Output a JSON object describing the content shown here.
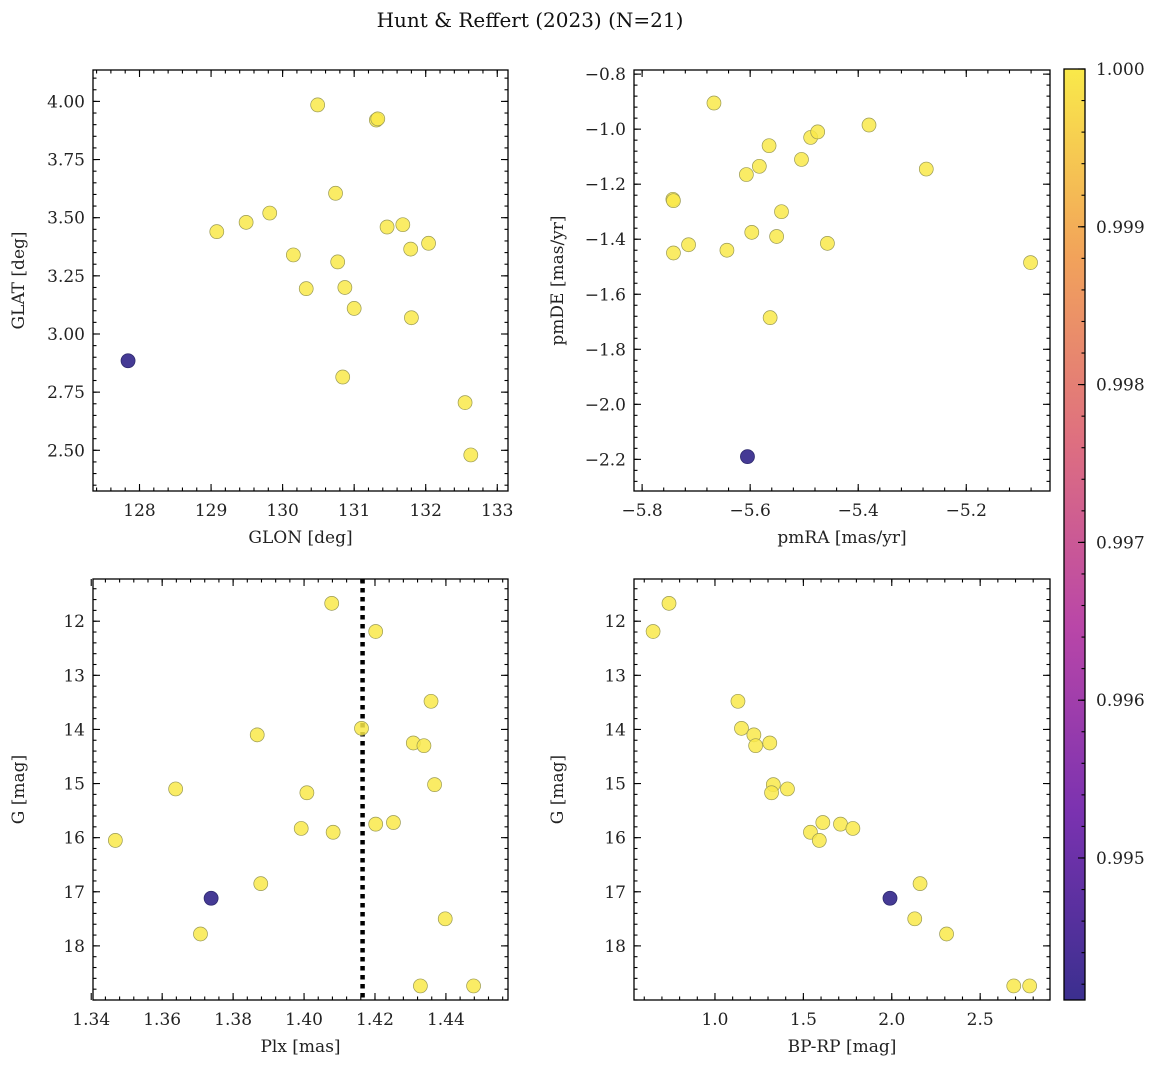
{
  "figure": {
    "title": "Hunt & Reffert (2023) (N=21)"
  },
  "colorbar": {
    "ticks": [
      "1.000",
      "0.999",
      "0.998",
      "0.997",
      "0.996",
      "0.995"
    ],
    "min": 0.9941,
    "max": 1.0,
    "colors": [
      "#3b2f8f",
      "#7a32b0",
      "#b946a8",
      "#de6f80",
      "#f2a35a",
      "#f9e94a"
    ]
  },
  "chart_data": [
    {
      "type": "scatter",
      "name": "galactic-coords",
      "xlabel": "GLON [deg]",
      "ylabel": "GLAT [deg]",
      "xlim": [
        127.35,
        133.15
      ],
      "ylim": [
        2.325,
        4.135
      ],
      "xticks": [
        128,
        129,
        130,
        131,
        132,
        133
      ],
      "yticks": [
        2.5,
        2.75,
        3.0,
        3.25,
        3.5,
        3.75,
        4.0
      ],
      "ytick_labels": [
        "2.50",
        "2.75",
        "3.00",
        "3.25",
        "3.50",
        "3.75",
        "4.00"
      ],
      "invert_y": false,
      "points": [
        {
          "x": 127.84,
          "y": 2.885,
          "prob": 0.9941
        },
        {
          "x": 129.08,
          "y": 3.44,
          "prob": 1.0
        },
        {
          "x": 129.49,
          "y": 3.48,
          "prob": 1.0
        },
        {
          "x": 129.82,
          "y": 3.52,
          "prob": 1.0
        },
        {
          "x": 130.15,
          "y": 3.34,
          "prob": 1.0
        },
        {
          "x": 130.33,
          "y": 3.195,
          "prob": 1.0
        },
        {
          "x": 130.49,
          "y": 3.985,
          "prob": 1.0
        },
        {
          "x": 130.74,
          "y": 3.605,
          "prob": 1.0
        },
        {
          "x": 130.77,
          "y": 3.31,
          "prob": 1.0
        },
        {
          "x": 130.84,
          "y": 2.815,
          "prob": 1.0
        },
        {
          "x": 130.87,
          "y": 3.2,
          "prob": 1.0
        },
        {
          "x": 131.0,
          "y": 3.11,
          "prob": 1.0
        },
        {
          "x": 131.31,
          "y": 3.92,
          "prob": 1.0
        },
        {
          "x": 131.33,
          "y": 3.925,
          "prob": 1.0
        },
        {
          "x": 131.46,
          "y": 3.46,
          "prob": 1.0
        },
        {
          "x": 131.68,
          "y": 3.47,
          "prob": 1.0
        },
        {
          "x": 131.79,
          "y": 3.365,
          "prob": 1.0
        },
        {
          "x": 131.8,
          "y": 3.07,
          "prob": 1.0
        },
        {
          "x": 132.04,
          "y": 3.39,
          "prob": 1.0
        },
        {
          "x": 132.55,
          "y": 2.705,
          "prob": 1.0
        },
        {
          "x": 132.63,
          "y": 2.48,
          "prob": 1.0
        }
      ]
    },
    {
      "type": "scatter",
      "name": "proper-motion",
      "xlabel": "pmRA [mas/yr]",
      "ylabel": "pmDE [mas/yr]",
      "xlim": [
        -5.815,
        -5.045
      ],
      "ylim": [
        -2.315,
        -0.785
      ],
      "xticks": [
        -5.8,
        -5.6,
        -5.4,
        -5.2
      ],
      "xtick_labels": [
        "−5.8",
        "−5.6",
        "−5.4",
        "−5.2"
      ],
      "yticks": [
        -2.2,
        -2.0,
        -1.8,
        -1.6,
        -1.4,
        -1.2,
        -1.0,
        -0.8
      ],
      "ytick_labels": [
        "−2.2",
        "−2.0",
        "−1.8",
        "−1.6",
        "−1.4",
        "−1.2",
        "−1.0",
        "−0.8"
      ],
      "invert_y": false,
      "points": [
        {
          "x": -5.605,
          "y": -2.19,
          "prob": 0.9941
        },
        {
          "x": -5.667,
          "y": -0.905,
          "prob": 1.0
        },
        {
          "x": -5.743,
          "y": -1.255,
          "prob": 1.0
        },
        {
          "x": -5.742,
          "y": -1.26,
          "prob": 1.0
        },
        {
          "x": -5.742,
          "y": -1.45,
          "prob": 1.0
        },
        {
          "x": -5.714,
          "y": -1.42,
          "prob": 1.0
        },
        {
          "x": -5.643,
          "y": -1.44,
          "prob": 1.0
        },
        {
          "x": -5.607,
          "y": -1.165,
          "prob": 1.0
        },
        {
          "x": -5.597,
          "y": -1.375,
          "prob": 1.0
        },
        {
          "x": -5.583,
          "y": -1.135,
          "prob": 1.0
        },
        {
          "x": -5.565,
          "y": -1.06,
          "prob": 1.0
        },
        {
          "x": -5.563,
          "y": -1.685,
          "prob": 1.0
        },
        {
          "x": -5.551,
          "y": -1.39,
          "prob": 1.0
        },
        {
          "x": -5.542,
          "y": -1.3,
          "prob": 1.0
        },
        {
          "x": -5.505,
          "y": -1.11,
          "prob": 1.0
        },
        {
          "x": -5.488,
          "y": -1.03,
          "prob": 1.0
        },
        {
          "x": -5.475,
          "y": -1.01,
          "prob": 1.0
        },
        {
          "x": -5.457,
          "y": -1.415,
          "prob": 1.0
        },
        {
          "x": -5.38,
          "y": -0.985,
          "prob": 1.0
        },
        {
          "x": -5.274,
          "y": -1.145,
          "prob": 1.0
        },
        {
          "x": -5.081,
          "y": -1.485,
          "prob": 1.0
        }
      ]
    },
    {
      "type": "scatter",
      "name": "parallax-magnitude",
      "xlabel": "Plx [mas]",
      "ylabel": "G [mag]",
      "xlim": [
        1.3405,
        1.4575
      ],
      "ylim": [
        19.0,
        11.22
      ],
      "xticks": [
        1.34,
        1.36,
        1.38,
        1.4,
        1.42,
        1.44
      ],
      "xtick_labels": [
        "1.34",
        "1.36",
        "1.38",
        "1.40",
        "1.42",
        "1.44"
      ],
      "yticks": [
        12,
        13,
        14,
        15,
        16,
        17,
        18
      ],
      "invert_y": true,
      "vline": {
        "x": 1.4165,
        "style": "dotted"
      },
      "points": [
        {
          "x": 1.3738,
          "y": 17.12,
          "prob": 0.9941
        },
        {
          "x": 1.3468,
          "y": 16.05,
          "prob": 1.0
        },
        {
          "x": 1.3638,
          "y": 15.1,
          "prob": 1.0
        },
        {
          "x": 1.3708,
          "y": 17.78,
          "prob": 1.0
        },
        {
          "x": 1.3868,
          "y": 14.1,
          "prob": 1.0
        },
        {
          "x": 1.3878,
          "y": 16.85,
          "prob": 1.0
        },
        {
          "x": 1.3992,
          "y": 15.83,
          "prob": 1.0
        },
        {
          "x": 1.4008,
          "y": 15.17,
          "prob": 1.0
        },
        {
          "x": 1.4078,
          "y": 11.67,
          "prob": 1.0
        },
        {
          "x": 1.4082,
          "y": 15.9,
          "prob": 1.0
        },
        {
          "x": 1.4162,
          "y": 13.98,
          "prob": 1.0
        },
        {
          "x": 1.4202,
          "y": 12.19,
          "prob": 1.0
        },
        {
          "x": 1.4202,
          "y": 15.75,
          "prob": 1.0
        },
        {
          "x": 1.4252,
          "y": 15.72,
          "prob": 1.0
        },
        {
          "x": 1.4308,
          "y": 14.25,
          "prob": 1.0
        },
        {
          "x": 1.4338,
          "y": 14.3,
          "prob": 1.0
        },
        {
          "x": 1.4328,
          "y": 18.74,
          "prob": 1.0
        },
        {
          "x": 1.4358,
          "y": 13.48,
          "prob": 1.0
        },
        {
          "x": 1.4368,
          "y": 15.02,
          "prob": 1.0
        },
        {
          "x": 1.4398,
          "y": 17.5,
          "prob": 1.0
        },
        {
          "x": 1.4478,
          "y": 18.74,
          "prob": 1.0
        }
      ]
    },
    {
      "type": "scatter",
      "name": "color-magnitude",
      "xlabel": "BP-RP [mag]",
      "ylabel": "G [mag]",
      "xlim": [
        0.542,
        2.895
      ],
      "ylim": [
        19.0,
        11.22
      ],
      "xticks": [
        1.0,
        1.5,
        2.0,
        2.5
      ],
      "xtick_labels": [
        "1.0",
        "1.5",
        "2.0",
        "2.5"
      ],
      "yticks": [
        12,
        13,
        14,
        15,
        16,
        17,
        18
      ],
      "invert_y": true,
      "points": [
        {
          "x": 1.99,
          "y": 17.12,
          "prob": 0.9941
        },
        {
          "x": 0.65,
          "y": 12.19,
          "prob": 1.0
        },
        {
          "x": 0.74,
          "y": 11.67,
          "prob": 1.0
        },
        {
          "x": 1.13,
          "y": 13.48,
          "prob": 1.0
        },
        {
          "x": 1.15,
          "y": 13.98,
          "prob": 1.0
        },
        {
          "x": 1.22,
          "y": 14.1,
          "prob": 1.0
        },
        {
          "x": 1.23,
          "y": 14.3,
          "prob": 1.0
        },
        {
          "x": 1.31,
          "y": 14.25,
          "prob": 1.0
        },
        {
          "x": 1.33,
          "y": 15.02,
          "prob": 1.0
        },
        {
          "x": 1.32,
          "y": 15.17,
          "prob": 1.0
        },
        {
          "x": 1.41,
          "y": 15.1,
          "prob": 1.0
        },
        {
          "x": 1.54,
          "y": 15.9,
          "prob": 1.0
        },
        {
          "x": 1.59,
          "y": 16.05,
          "prob": 1.0
        },
        {
          "x": 1.61,
          "y": 15.72,
          "prob": 1.0
        },
        {
          "x": 1.71,
          "y": 15.75,
          "prob": 1.0
        },
        {
          "x": 1.78,
          "y": 15.83,
          "prob": 1.0
        },
        {
          "x": 2.16,
          "y": 16.85,
          "prob": 1.0
        },
        {
          "x": 2.13,
          "y": 17.5,
          "prob": 1.0
        },
        {
          "x": 2.31,
          "y": 17.78,
          "prob": 1.0
        },
        {
          "x": 2.69,
          "y": 18.74,
          "prob": 1.0
        },
        {
          "x": 2.78,
          "y": 18.74,
          "prob": 1.0
        }
      ]
    }
  ]
}
